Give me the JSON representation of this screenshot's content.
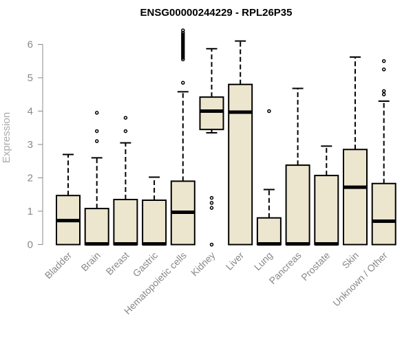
{
  "chart_data": {
    "type": "boxplot",
    "title": "ENSG00000244229 - RPL26P35",
    "xlabel": "",
    "ylabel": "Expression",
    "ylim": [
      0,
      6.5
    ],
    "yticks": [
      0,
      1,
      2,
      3,
      4,
      5,
      6
    ],
    "box_fill": "#ede6cf",
    "categories": [
      "Bladder",
      "Brain",
      "Breast",
      "Gastric",
      "Hematopoietic cells",
      "Kidney",
      "Liver",
      "Lung",
      "Pancreas",
      "Prostate",
      "Skin",
      "Unknown / Other"
    ],
    "boxes": [
      {
        "name": "Bladder",
        "whisker_low": 0,
        "q1": 0,
        "median": 0.72,
        "q3": 1.47,
        "whisker_high": 2.7,
        "outliers": []
      },
      {
        "name": "Brain",
        "whisker_low": 0,
        "q1": 0,
        "median": 0.02,
        "q3": 1.08,
        "whisker_high": 2.6,
        "outliers": [
          3.1,
          3.4,
          3.95
        ]
      },
      {
        "name": "Breast",
        "whisker_low": 0,
        "q1": 0,
        "median": 0.02,
        "q3": 1.35,
        "whisker_high": 3.05,
        "outliers": [
          3.4,
          3.8
        ]
      },
      {
        "name": "Gastric",
        "whisker_low": 0,
        "q1": 0,
        "median": 0.02,
        "q3": 1.33,
        "whisker_high": 2.02,
        "outliers": []
      },
      {
        "name": "Hematopoietic cells",
        "whisker_low": 0,
        "q1": 0,
        "median": 0.97,
        "q3": 1.9,
        "whisker_high": 4.58,
        "outliers": [
          4.85,
          5.55,
          5.6,
          5.65,
          5.7,
          5.75,
          5.8,
          5.85,
          5.9,
          5.95,
          6.0,
          6.05,
          6.1,
          6.15,
          6.2,
          6.25,
          6.3,
          6.35,
          6.42
        ]
      },
      {
        "name": "Kidney",
        "whisker_low": 3.35,
        "q1": 3.45,
        "median": 4.0,
        "q3": 4.42,
        "whisker_high": 5.87,
        "outliers": [
          0.0,
          1.1,
          1.25,
          1.4
        ]
      },
      {
        "name": "Liver",
        "whisker_low": 0,
        "q1": 0,
        "median": 3.97,
        "q3": 4.8,
        "whisker_high": 6.1,
        "outliers": []
      },
      {
        "name": "Lung",
        "whisker_low": 0,
        "q1": 0,
        "median": 0.02,
        "q3": 0.8,
        "whisker_high": 1.65,
        "outliers": [
          4.0
        ]
      },
      {
        "name": "Pancreas",
        "whisker_low": 0,
        "q1": 0,
        "median": 0.02,
        "q3": 2.38,
        "whisker_high": 4.68,
        "outliers": []
      },
      {
        "name": "Prostate",
        "whisker_low": 0,
        "q1": 0,
        "median": 0.02,
        "q3": 2.07,
        "whisker_high": 2.95,
        "outliers": []
      },
      {
        "name": "Skin",
        "whisker_low": 0,
        "q1": 0,
        "median": 1.72,
        "q3": 2.85,
        "whisker_high": 5.62,
        "outliers": []
      },
      {
        "name": "Unknown / Other",
        "whisker_low": 0,
        "q1": 0,
        "median": 0.7,
        "q3": 1.83,
        "whisker_high": 4.3,
        "outliers": [
          4.5,
          4.6,
          5.25,
          5.5
        ]
      }
    ]
  }
}
